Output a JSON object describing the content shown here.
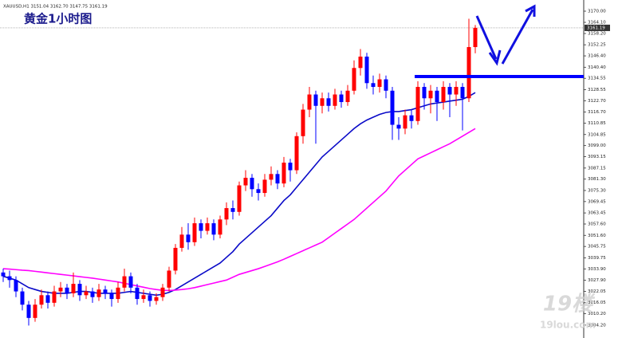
{
  "chart_data": {
    "type": "candlestick",
    "title": "黄金1小时图",
    "header": "XAUUSD,H1  3151.04 3162.70 3147.75 3161.19",
    "open": [
      3032,
      3030,
      3028,
      3022,
      3015,
      3008,
      3015,
      3020,
      3016,
      3022,
      3024,
      3021,
      3026,
      3020,
      3022,
      3019,
      3023,
      3021,
      3018,
      3024,
      3030,
      3024,
      3018,
      3020,
      3017,
      3019,
      3024,
      3033,
      3045,
      3052,
      3048,
      3058,
      3054,
      3058,
      3052,
      3060,
      3066,
      3064,
      3078,
      3082,
      3076,
      3074,
      3081,
      3084,
      3079,
      3090,
      3086,
      3104,
      3118,
      3126,
      3120,
      3124,
      3120,
      3126,
      3122,
      3128,
      3140,
      3146,
      3132,
      3130,
      3134,
      3128,
      3110,
      3108,
      3115,
      3112,
      3130,
      3124,
      3128,
      3122,
      3130,
      3126,
      3130,
      3124,
      3151.04
    ],
    "high": [
      3034,
      3033,
      3030,
      3024,
      3017,
      3018,
      3023,
      3022,
      3025,
      3027,
      3026,
      3032,
      3028,
      3025,
      3024,
      3026,
      3025,
      3023,
      3027,
      3034,
      3032,
      3026,
      3023,
      3022,
      3021,
      3026,
      3035,
      3047,
      3056,
      3058,
      3061,
      3060,
      3061,
      3060,
      3062,
      3069,
      3070,
      3080,
      3086,
      3084,
      3079,
      3084,
      3088,
      3086,
      3093,
      3092,
      3106,
      3121,
      3130,
      3128,
      3127,
      3127,
      3129,
      3128,
      3131,
      3144,
      3150,
      3148,
      3136,
      3137,
      3136,
      3130,
      3114,
      3118,
      3118,
      3133,
      3132,
      3131,
      3130,
      3133,
      3132,
      3133,
      3132,
      3166,
      3162.7
    ],
    "low": [
      3027,
      3024,
      3019,
      3012,
      3004,
      3006,
      3013,
      3013,
      3014,
      3019,
      3018,
      3019,
      3017,
      3018,
      3016,
      3017,
      3018,
      3014,
      3016,
      3022,
      3021,
      3015,
      3016,
      3014,
      3015,
      3017,
      3022,
      3031,
      3043,
      3044,
      3046,
      3050,
      3052,
      3049,
      3050,
      3057,
      3060,
      3062,
      3075,
      3072,
      3070,
      3072,
      3078,
      3076,
      3077,
      3080,
      3084,
      3100,
      3114,
      3100,
      3116,
      3117,
      3118,
      3119,
      3120,
      3126,
      3136,
      3129,
      3126,
      3127,
      3124,
      3102,
      3102,
      3105,
      3108,
      3110,
      3118,
      3116,
      3112,
      3118,
      3114,
      3120,
      3107,
      3122,
      3147.75
    ],
    "close": [
      3030,
      3028,
      3022,
      3015,
      3008,
      3015,
      3020,
      3016,
      3022,
      3024,
      3021,
      3026,
      3020,
      3022,
      3019,
      3023,
      3021,
      3018,
      3024,
      3030,
      3024,
      3018,
      3020,
      3017,
      3019,
      3024,
      3033,
      3045,
      3052,
      3048,
      3058,
      3054,
      3058,
      3052,
      3060,
      3066,
      3064,
      3078,
      3082,
      3076,
      3074,
      3081,
      3084,
      3079,
      3090,
      3086,
      3104,
      3118,
      3126,
      3120,
      3124,
      3120,
      3126,
      3122,
      3128,
      3140,
      3146,
      3132,
      3130,
      3134,
      3128,
      3110,
      3108,
      3115,
      3112,
      3130,
      3124,
      3128,
      3122,
      3130,
      3126,
      3130,
      3124,
      3151.04,
      3161.19
    ],
    "up_color": "#ff0000",
    "down_color": "#0000ff",
    "series": [
      {
        "color": "#0a0ac8",
        "values": [
          3030,
          3029,
          3028,
          3026,
          3024,
          3023,
          3022,
          3021.5,
          3021,
          3021,
          3021,
          3021.5,
          3022,
          3022,
          3021.5,
          3021,
          3021,
          3021,
          3021,
          3021.5,
          3022,
          3021.5,
          3021,
          3020.5,
          3020,
          3020.5,
          3021.5,
          3023,
          3025,
          3027,
          3029,
          3031,
          3033,
          3035,
          3037,
          3040,
          3043,
          3047,
          3050,
          3053,
          3056,
          3059,
          3062,
          3066,
          3070,
          3073,
          3077,
          3081,
          3085,
          3089,
          3093,
          3096,
          3099,
          3102,
          3105,
          3108,
          3110.5,
          3112.5,
          3114,
          3115.5,
          3116.5,
          3117,
          3117,
          3117.5,
          3118,
          3119,
          3120,
          3121,
          3121.5,
          3122,
          3122.5,
          3123,
          3123.5,
          3125,
          3127
        ]
      },
      {
        "color": "#ff00ff",
        "values": [
          3034,
          3033.8,
          3033.5,
          3033.2,
          3033,
          3032.6,
          3032.2,
          3031.8,
          3031.4,
          3031,
          3030.6,
          3030.2,
          3029.8,
          3029.4,
          3029,
          3028.5,
          3028,
          3027.5,
          3027,
          3026.3,
          3025.6,
          3024.9,
          3024.2,
          3023.5,
          3023,
          3022.6,
          3022.5,
          3022.7,
          3023,
          3023.4,
          3024,
          3024.8,
          3025.6,
          3026.4,
          3027.2,
          3028,
          3029.5,
          3031,
          3032,
          3033,
          3034,
          3035.2,
          3036.4,
          3037.6,
          3039,
          3040.5,
          3042,
          3043.5,
          3045,
          3046.5,
          3048,
          3050.4,
          3052.8,
          3055.2,
          3057.6,
          3060,
          3063,
          3066,
          3069,
          3072,
          3075,
          3079,
          3083,
          3086,
          3089,
          3092,
          3093.6,
          3095.2,
          3096.8,
          3098.4,
          3100,
          3102,
          3104,
          3106,
          3108
        ]
      }
    ],
    "ylim": [
      2997.4,
      3175.9
    ],
    "yticks": [
      {
        "value": 3170.0,
        "label": "3170.00"
      },
      {
        "value": 3164.1,
        "label": "3164.10"
      },
      {
        "value": 3158.2,
        "label": "3158.20"
      },
      {
        "value": 3152.25,
        "label": "3152.25"
      },
      {
        "value": 3146.4,
        "label": "3146.40"
      },
      {
        "value": 3140.4,
        "label": "3140.40"
      },
      {
        "value": 3134.55,
        "label": "3134.55"
      },
      {
        "value": 3128.55,
        "label": "3128.55"
      },
      {
        "value": 3122.7,
        "label": "3122.70"
      },
      {
        "value": 3116.7,
        "label": "3116.70"
      },
      {
        "value": 3110.85,
        "label": "3110.85"
      },
      {
        "value": 3104.85,
        "label": "3104.85"
      },
      {
        "value": 3099.0,
        "label": "3099.00"
      },
      {
        "value": 3093.15,
        "label": "3093.15"
      },
      {
        "value": 3087.15,
        "label": "3087.15"
      },
      {
        "value": 3081.3,
        "label": "3081.30"
      },
      {
        "value": 3075.3,
        "label": "3075.30"
      },
      {
        "value": 3069.45,
        "label": "3069.45"
      },
      {
        "value": 3063.45,
        "label": "3063.45"
      },
      {
        "value": 3057.6,
        "label": "3057.60"
      },
      {
        "value": 3051.6,
        "label": "3051.60"
      },
      {
        "value": 3045.75,
        "label": "3045.75"
      },
      {
        "value": 3039.75,
        "label": "3039.75"
      },
      {
        "value": 3033.9,
        "label": "3033.90"
      },
      {
        "value": 3027.9,
        "label": "3027.90"
      },
      {
        "value": 3022.05,
        "label": "3022.05"
      },
      {
        "value": 3016.05,
        "label": "3016.05"
      },
      {
        "value": 3010.2,
        "label": "3010.20"
      },
      {
        "value": 3004.2,
        "label": "3004.20"
      }
    ],
    "level": 3135.5,
    "level_color": "#0000ff",
    "watermark": [
      "19楼",
      "19lou.com"
    ]
  }
}
